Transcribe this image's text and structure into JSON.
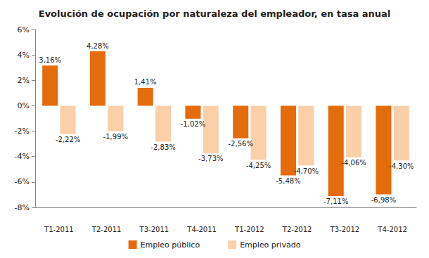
{
  "chart_data": {
    "type": "bar",
    "title": "Evolución de ocupación por naturaleza del empleador, en tasa anual",
    "categories": [
      "T1-2011",
      "T2-2011",
      "T3-2011",
      "T4-2011",
      "T1-2012",
      "T2-2012",
      "T3-2012",
      "T4-2012"
    ],
    "series": [
      {
        "name": "Empleo público",
        "color": "#E46C0A",
        "values": [
          3.16,
          4.28,
          1.41,
          -1.02,
          -2.56,
          -5.48,
          -7.11,
          -6.98
        ],
        "value_labels": [
          "3,16%",
          "4,28%",
          "1,41%",
          "-1,02%",
          "-2,56%",
          "-5,48%",
          "-7,11%",
          "-6,98%"
        ]
      },
      {
        "name": "Empleo privado",
        "color": "#FBCFA8",
        "values": [
          -2.22,
          -1.99,
          -2.83,
          -3.73,
          -4.25,
          -4.7,
          -4.06,
          -4.3
        ],
        "value_labels": [
          "-2,22%",
          "-1,99%",
          "-2,83%",
          "-3,73%",
          "-4,25%",
          "-4,70%",
          "-4,06%",
          "-4,30%"
        ]
      }
    ],
    "ylim": [
      -8,
      6
    ],
    "yticks": [
      {
        "value": -8,
        "label": "-8%"
      },
      {
        "value": -6,
        "label": "-6%"
      },
      {
        "value": -4,
        "label": "-4%"
      },
      {
        "value": -2,
        "label": "-2%"
      },
      {
        "value": 0,
        "label": "0%"
      },
      {
        "value": 2,
        "label": "2%"
      },
      {
        "value": 4,
        "label": "4%"
      },
      {
        "value": 6,
        "label": "6%"
      }
    ],
    "grid": false,
    "legend": "bottom",
    "data_labels": true
  }
}
